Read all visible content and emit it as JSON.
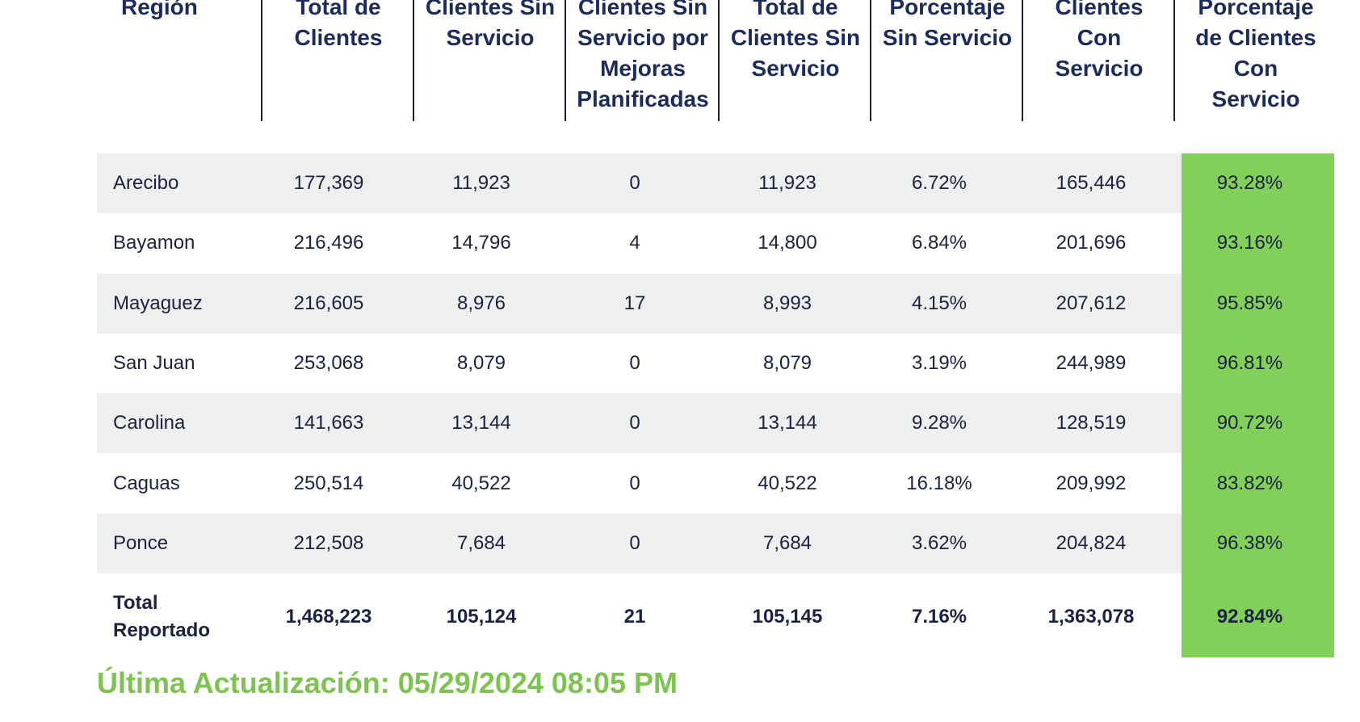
{
  "headers": [
    "Región",
    "Total de\nClientes",
    "Clientes Sin\nServicio",
    "Clientes Sin\nServicio por\nMejoras\nPlanificadas",
    "Total de\nClientes Sin\nServicio",
    "Porcentaje\nSin Servicio",
    "Clientes\nCon\nServicio",
    "Porcentaje\nde Clientes\nCon\nServicio"
  ],
  "rows": [
    [
      "Arecibo",
      "177,369",
      "11,923",
      "0",
      "11,923",
      "6.72%",
      "165,446",
      "93.28%"
    ],
    [
      "Bayamon",
      "216,496",
      "14,796",
      "4",
      "14,800",
      "6.84%",
      "201,696",
      "93.16%"
    ],
    [
      "Mayaguez",
      "216,605",
      "8,976",
      "17",
      "8,993",
      "4.15%",
      "207,612",
      "95.85%"
    ],
    [
      "San Juan",
      "253,068",
      "8,079",
      "0",
      "8,079",
      "3.19%",
      "244,989",
      "96.81%"
    ],
    [
      "Carolina",
      "141,663",
      "13,144",
      "0",
      "13,144",
      "9.28%",
      "128,519",
      "90.72%"
    ],
    [
      "Caguas",
      "250,514",
      "40,522",
      "0",
      "40,522",
      "16.18%",
      "209,992",
      "83.82%"
    ],
    [
      "Ponce",
      "212,508",
      "7,684",
      "0",
      "7,684",
      "3.62%",
      "204,824",
      "96.38%"
    ]
  ],
  "total": [
    "Total\nReportado",
    "1,468,223",
    "105,124",
    "21",
    "105,145",
    "7.16%",
    "1,363,078",
    "92.84%"
  ],
  "updated": "Última Actualización: 05/29/2024 08:05 PM",
  "colors": {
    "header_text": "#1b2b5b",
    "row_shade": "#eef0ef",
    "highlight_column": "#82d05a",
    "updated_text": "#7dc34f"
  }
}
